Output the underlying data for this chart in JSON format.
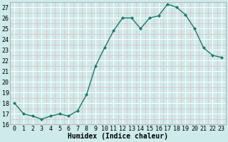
{
  "x": [
    0,
    1,
    2,
    3,
    4,
    5,
    6,
    7,
    8,
    9,
    10,
    11,
    12,
    13,
    14,
    15,
    16,
    17,
    18,
    19,
    20,
    21,
    22,
    23
  ],
  "y": [
    18.0,
    17.0,
    16.8,
    16.5,
    16.8,
    17.0,
    16.8,
    17.3,
    18.8,
    21.5,
    23.2,
    24.8,
    26.0,
    26.0,
    25.0,
    26.0,
    26.2,
    27.3,
    27.0,
    26.3,
    25.0,
    23.2,
    22.5,
    22.3
  ],
  "line_color": "#1a7a6e",
  "marker": "D",
  "markersize": 2.0,
  "linewidth": 1.0,
  "bg_color": "#ceeaea",
  "grid_major_color": "#ffffff",
  "grid_minor_color": "#e8b8b8",
  "xlabel": "Humidex (Indice chaleur)",
  "xlim": [
    -0.5,
    23.5
  ],
  "ylim": [
    16.0,
    27.5
  ],
  "yticks": [
    16,
    17,
    18,
    19,
    20,
    21,
    22,
    23,
    24,
    25,
    26,
    27
  ],
  "xticks": [
    0,
    1,
    2,
    3,
    4,
    5,
    6,
    7,
    8,
    9,
    10,
    11,
    12,
    13,
    14,
    15,
    16,
    17,
    18,
    19,
    20,
    21,
    22,
    23
  ],
  "xlabel_fontsize": 7.0,
  "tick_fontsize": 6.0
}
